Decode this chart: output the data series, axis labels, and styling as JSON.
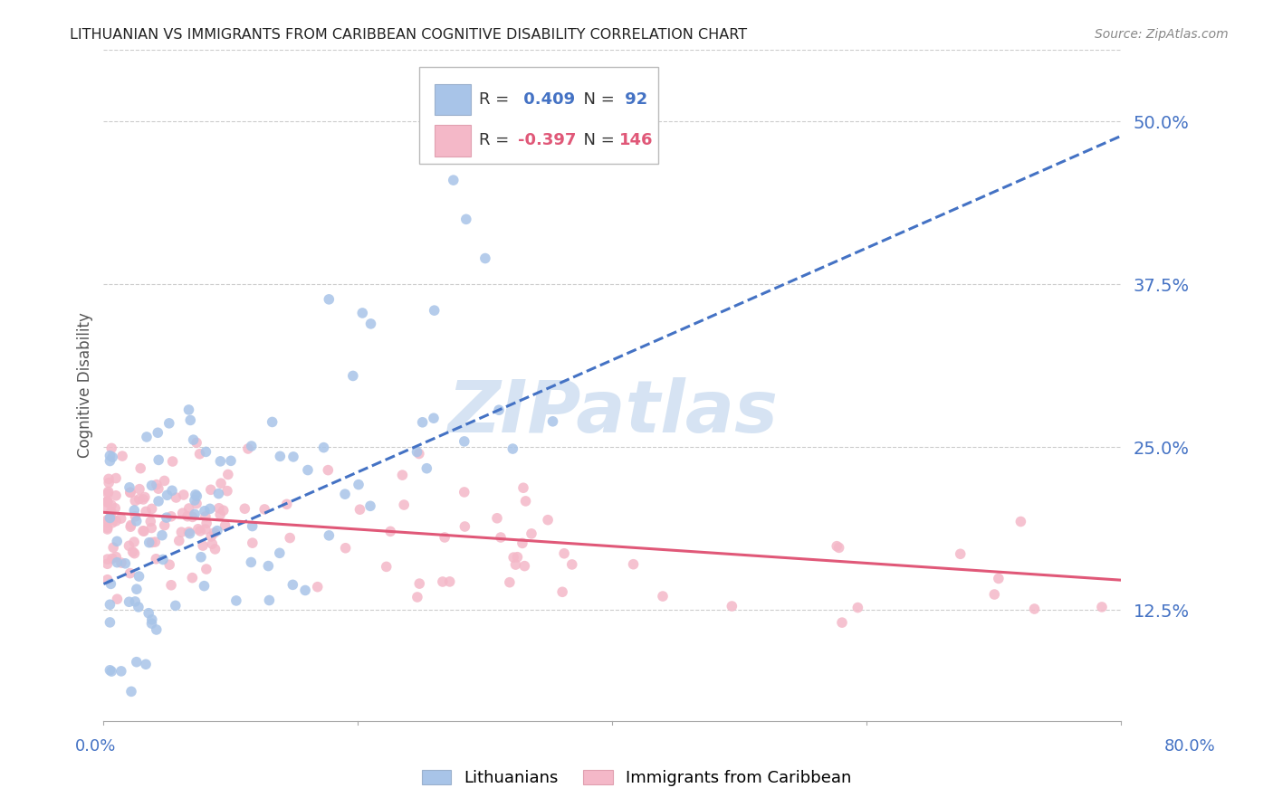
{
  "title": "LITHUANIAN VS IMMIGRANTS FROM CARIBBEAN COGNITIVE DISABILITY CORRELATION CHART",
  "source": "Source: ZipAtlas.com",
  "ylabel": "Cognitive Disability",
  "yticks": [
    "12.5%",
    "25.0%",
    "37.5%",
    "50.0%"
  ],
  "ytick_vals": [
    0.125,
    0.25,
    0.375,
    0.5
  ],
  "xlim": [
    0.0,
    0.8
  ],
  "ylim": [
    0.04,
    0.555
  ],
  "watermark": "ZIPatlas",
  "series": [
    {
      "name": "Lithuanians",
      "R": 0.409,
      "N": 92,
      "color": "#a8c4e8",
      "line_color": "#4472c4",
      "trend_dashed": true
    },
    {
      "name": "Immigrants from Caribbean",
      "R": -0.397,
      "N": 146,
      "color": "#f4b8c8",
      "line_color": "#e05878",
      "trend_dashed": false
    }
  ],
  "background_color": "#ffffff",
  "grid_color": "#cccccc",
  "title_color": "#222222",
  "axis_label_color": "#4472c4",
  "right_ytick_color": "#4472c4",
  "watermark_color": "#c5d8ee",
  "legend_R_color_blue": "#4472c4",
  "legend_R_color_pink": "#e05878",
  "legend_N_color_blue": "#4472c4",
  "legend_N_color_pink": "#e05878"
}
